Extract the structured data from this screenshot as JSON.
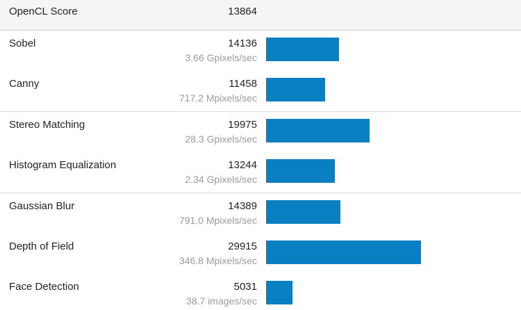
{
  "chart_data": {
    "type": "bar",
    "header": {
      "label": "OpenCL Score",
      "score": "13864"
    },
    "rows": [
      {
        "name": "Sobel",
        "score": 14136,
        "rate": "3.66 Gpixels/sec"
      },
      {
        "name": "Canny",
        "score": 11458,
        "rate": "717.2 Mpixels/sec"
      },
      {
        "name": "Stereo Matching",
        "score": 19975,
        "rate": "28.3 Gpixels/sec"
      },
      {
        "name": "Histogram Equalization",
        "score": 13244,
        "rate": "2.34 Gpixels/sec"
      },
      {
        "name": "Gaussian Blur",
        "score": 14389,
        "rate": "791.0 Mpixels/sec"
      },
      {
        "name": "Depth of Field",
        "score": 29915,
        "rate": "346.8 Mpixels/sec"
      },
      {
        "name": "Face Detection",
        "score": 5031,
        "rate": "38.7 images/sec"
      }
    ],
    "bar_color": "#0a7fc2"
  }
}
